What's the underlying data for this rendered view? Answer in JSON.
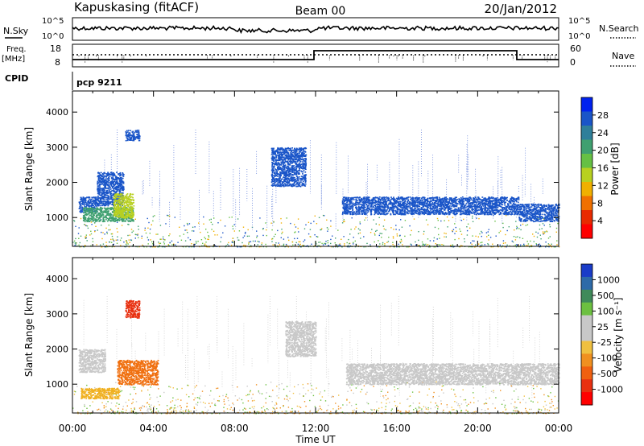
{
  "header": {
    "station": "Kapuskasing (fitACF)",
    "beam": "Beam 00",
    "date": "20/Jan/2012"
  },
  "top_panels": {
    "nsky_label": "N.Sky",
    "nsky_ticks": [
      "10^5",
      "10^0"
    ],
    "nsearch_label": "N.Search",
    "nsearch_ticks": [
      "10^5",
      "10^0"
    ],
    "freq_label": "Freq.",
    "freq_unit": "[MHz]",
    "freq_ticks": [
      "18",
      "8"
    ],
    "nave_label": "Nave",
    "nave_ticks": [
      "60",
      "0"
    ],
    "cpid_label": "CPID",
    "cpid_value": "pcp 9211"
  },
  "chart_data": [
    {
      "type": "heatmap",
      "panel": "power",
      "ylabel": "Slant Range [km]",
      "ylim": [
        180,
        4600
      ],
      "yticks": [
        "4000",
        "3000",
        "2000",
        "1000"
      ],
      "xlim_hours": [
        0,
        24
      ],
      "colorbar": {
        "label": "Power [dB]",
        "ticks": [
          "28",
          "24",
          "20",
          "16",
          "12",
          "8",
          "4"
        ],
        "colors": [
          "#0022ee",
          "#1a55c8",
          "#2f7f9a",
          "#3fa070",
          "#66c044",
          "#b8d020",
          "#f0b000",
          "#f07000",
          "#e82a00",
          "#ff0000"
        ]
      },
      "regions": [
        {
          "t": [
            0.3,
            1.2
          ],
          "r": [
            1150,
            1600
          ],
          "c": "#1a55c8"
        },
        {
          "t": [
            1.2,
            2.5
          ],
          "r": [
            1350,
            2300
          ],
          "c": "#1a55c8"
        },
        {
          "t": [
            0.5,
            3.0
          ],
          "r": [
            900,
            1300
          ],
          "c": "#3fa070"
        },
        {
          "t": [
            2.0,
            3.0
          ],
          "r": [
            1000,
            1700
          ],
          "c": "#b8d020"
        },
        {
          "t": [
            2.6,
            3.3
          ],
          "r": [
            3200,
            3500
          ],
          "c": "#1a55c8"
        },
        {
          "t": [
            9.8,
            11.5
          ],
          "r": [
            1900,
            3000
          ],
          "c": "#1a55c8"
        },
        {
          "t": [
            13.3,
            22.0
          ],
          "r": [
            1100,
            1600
          ],
          "c": "#1a55c8"
        },
        {
          "t": [
            22.0,
            24.0
          ],
          "r": [
            900,
            1400
          ],
          "c": "#1a55c8"
        }
      ]
    },
    {
      "type": "heatmap",
      "panel": "velocity",
      "ylabel": "Slant Range [km]",
      "ylim": [
        180,
        4600
      ],
      "yticks": [
        "4000",
        "3000",
        "2000",
        "1000"
      ],
      "xlim_hours": [
        0,
        24
      ],
      "xticks": [
        "00:00",
        "04:00",
        "08:00",
        "12:00",
        "16:00",
        "20:00",
        "00:00"
      ],
      "xlabel": "Time UT",
      "colorbar": {
        "label": "Velocity [m s⁻¹]",
        "ticks": [
          "1000",
          "500",
          "100",
          "25",
          "-25",
          "-100",
          "-500",
          "-1000"
        ],
        "colors": [
          "#1a3cc8",
          "#2e6aa8",
          "#3f8a5a",
          "#6cc040",
          "#c8c8c8",
          "#c8c8c8",
          "#f0c040",
          "#f09020",
          "#f06010",
          "#e83010",
          "#ff0000"
        ]
      },
      "regions": [
        {
          "t": [
            0.3,
            1.6
          ],
          "r": [
            1350,
            2000
          ],
          "c": "#c8c8c8"
        },
        {
          "t": [
            0.4,
            2.3
          ],
          "r": [
            600,
            900
          ],
          "c": "#f0b020"
        },
        {
          "t": [
            2.2,
            4.2
          ],
          "r": [
            1000,
            1700
          ],
          "c": "#f07010"
        },
        {
          "t": [
            2.6,
            3.3
          ],
          "r": [
            2900,
            3400
          ],
          "c": "#e83010"
        },
        {
          "t": [
            10.5,
            12.0
          ],
          "r": [
            1800,
            2800
          ],
          "c": "#c8c8c8"
        },
        {
          "t": [
            13.5,
            24.0
          ],
          "r": [
            1000,
            1600
          ],
          "c": "#c8c8c8"
        }
      ]
    }
  ]
}
